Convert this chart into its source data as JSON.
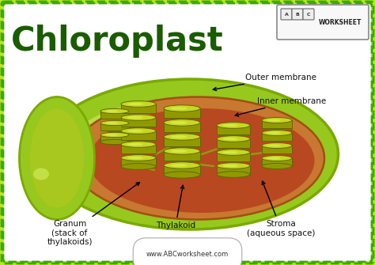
{
  "title": "Chloroplast",
  "title_color": "#1a5c00",
  "title_fontsize": 30,
  "title_fontweight": "bold",
  "bg_color": "#ffffff",
  "bg_outer": "#c8f060",
  "border_dash_color": "#3aaa00",
  "watermark": "www.ABCworksheet.com",
  "watermark_color": "#333333",
  "worksheet_text": "WORKSHEET",
  "outer_color": "#96c81e",
  "outer_dark": "#7aaa00",
  "outer_light": "#c8e850",
  "inner_ring_color": "#c87830",
  "stroma_color": "#b84820",
  "thylakoid_top": "#c8d820",
  "thylakoid_side": "#909a00",
  "thylakoid_edge": "#606800",
  "lamella_color": "#909a10",
  "labels": {
    "outer_membrane": "Outer membrane",
    "inner_membrane": "Inner membrane",
    "granum": "Granum\n(stack of\nthylakoids)",
    "thylakoid": "Thylakoid",
    "stroma": "Stroma\n(aqueous space)"
  },
  "label_fontsize": 7.5,
  "label_color": "#111111",
  "figsize": [
    4.74,
    3.35
  ],
  "dpi": 100
}
